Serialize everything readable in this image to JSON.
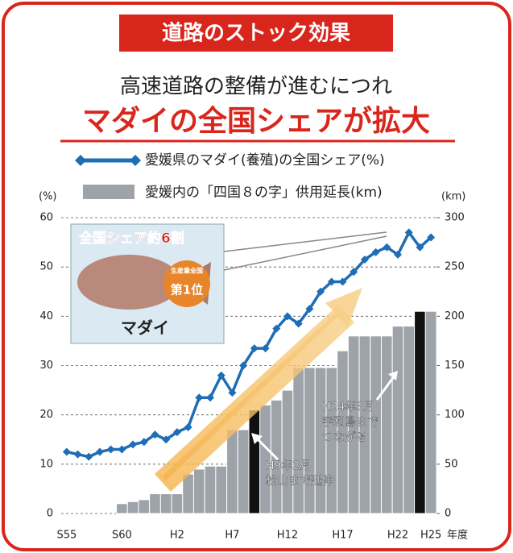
{
  "chart_data": {
    "type": "combo",
    "banner": "道路のストック効果",
    "title": "高速道路の整備が進むにつれ",
    "subtitle": "マダイの全国シェアが拡大",
    "y_unit": "(%)",
    "y2_unit": "(km)",
    "x_unit": "年度",
    "categories": [
      "S55",
      null,
      null,
      null,
      null,
      "S60",
      null,
      null,
      null,
      null,
      "H2",
      null,
      null,
      null,
      null,
      "H7",
      null,
      null,
      null,
      null,
      "H12",
      null,
      null,
      null,
      null,
      "H17",
      null,
      null,
      null,
      null,
      "H22",
      null,
      null,
      "H25"
    ],
    "ylim": [
      0,
      60
    ],
    "yticks": [
      0,
      10,
      20,
      30,
      40,
      50,
      60
    ],
    "y2lim": [
      0,
      300
    ],
    "y2ticks": [
      0,
      50,
      100,
      150,
      200,
      250,
      300
    ],
    "series": [
      {
        "name": "愛媛内の「四国８の字」供用延長(km)",
        "type": "bar",
        "axis": "y2",
        "color": "#9ea3aa",
        "point_colors": [
          "#9ea3aa",
          "#9ea3aa",
          "#9ea3aa",
          "#9ea3aa",
          "#9ea3aa",
          "#9ea3aa",
          "#9ea3aa",
          "#9ea3aa",
          "#9ea3aa",
          "#9ea3aa",
          "#9ea3aa",
          "#9ea3aa",
          "#9ea3aa",
          "#9ea3aa",
          "#9ea3aa",
          "#9ea3aa",
          "#9ea3aa",
          "#111111",
          "#9ea3aa",
          "#9ea3aa",
          "#9ea3aa",
          "#9ea3aa",
          "#9ea3aa",
          "#9ea3aa",
          "#9ea3aa",
          "#9ea3aa",
          "#9ea3aa",
          "#9ea3aa",
          "#9ea3aa",
          "#9ea3aa",
          "#9ea3aa",
          "#9ea3aa",
          "#111111",
          "#9ea3aa"
        ],
        "values": [
          0,
          0,
          0,
          0,
          0,
          10,
          12,
          14,
          20,
          20,
          20,
          40,
          45,
          48,
          48,
          85,
          85,
          105,
          110,
          115,
          125,
          148,
          148,
          148,
          148,
          165,
          180,
          180,
          180,
          180,
          190,
          190,
          205,
          205
        ]
      },
      {
        "name": "愛媛県のマダイ(養殖)の全国シェア(%)",
        "type": "line",
        "axis": "y",
        "color": "#1f6db5",
        "values": [
          12.5,
          12,
          11.5,
          12.5,
          13,
          13,
          14,
          14.5,
          16,
          15,
          16.5,
          17.5,
          23.5,
          23.5,
          28,
          24.5,
          30,
          33.5,
          33.5,
          37.5,
          40,
          38.5,
          41.5,
          45,
          47,
          47,
          49,
          51.5,
          53,
          54,
          52.5,
          57,
          54,
          56
        ]
      }
    ],
    "annotations": [
      {
        "lines": [
          "H9年2月",
          "松山まで延伸"
        ]
      },
      {
        "lines": [
          "H24年3月",
          "宇和島まで",
          "つながる"
        ]
      }
    ],
    "inset": {
      "caption": "全国シェア約6割",
      "name": "マダイ",
      "badge": [
        "生産量全国",
        "第1位"
      ]
    }
  }
}
